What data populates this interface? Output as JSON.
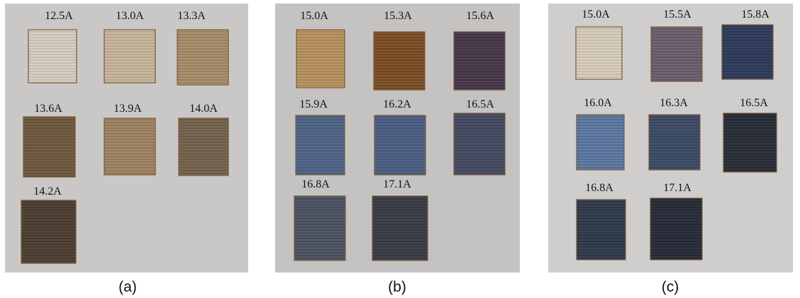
{
  "panels": [
    {
      "caption": "(a)",
      "samples": [
        "12.5A",
        "13.0A",
        "13.3A",
        "13.6A",
        "13.9A",
        "14.0A",
        "14.2A"
      ]
    },
    {
      "caption": "(b)",
      "samples": [
        "15.0A",
        "15.3A",
        "15.6A",
        "15.9A",
        "16.2A",
        "16.5A",
        "16.8A",
        "17.1A"
      ]
    },
    {
      "caption": "(c)",
      "samples": [
        "15.0A",
        "15.5A",
        "15.8A",
        "16.0A",
        "16.3A",
        "16.5A",
        "16.8A",
        "17.1A"
      ]
    }
  ]
}
